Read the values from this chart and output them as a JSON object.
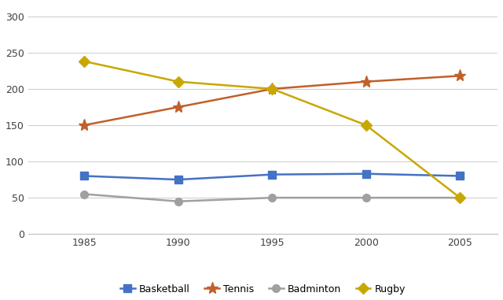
{
  "years": [
    1985,
    1990,
    1995,
    2000,
    2005
  ],
  "series": {
    "Basketball": [
      80,
      75,
      82,
      83,
      80
    ],
    "Tennis": [
      150,
      175,
      200,
      210,
      218
    ],
    "Badminton": [
      55,
      45,
      50,
      50,
      50
    ],
    "Rugby": [
      238,
      210,
      200,
      150,
      50
    ]
  },
  "colors": {
    "Basketball": "#4472C4",
    "Tennis": "#C0602A",
    "Badminton": "#A0A0A0",
    "Rugby": "#C8A800"
  },
  "markers": {
    "Basketball": "s",
    "Tennis": "*",
    "Badminton": "o",
    "Rugby": "D"
  },
  "marker_sizes": {
    "Basketball": 7,
    "Tennis": 11,
    "Badminton": 7,
    "Rugby": 7
  },
  "ylim": [
    0,
    315
  ],
  "yticks": [
    0,
    50,
    100,
    150,
    200,
    250,
    300
  ],
  "xlim": [
    1982,
    2007
  ],
  "background_color": "#ffffff",
  "plot_bg_color": "#ffffff",
  "grid_color": "#d0d0d0",
  "legend_order": [
    "Basketball",
    "Tennis",
    "Badminton",
    "Rugby"
  ]
}
